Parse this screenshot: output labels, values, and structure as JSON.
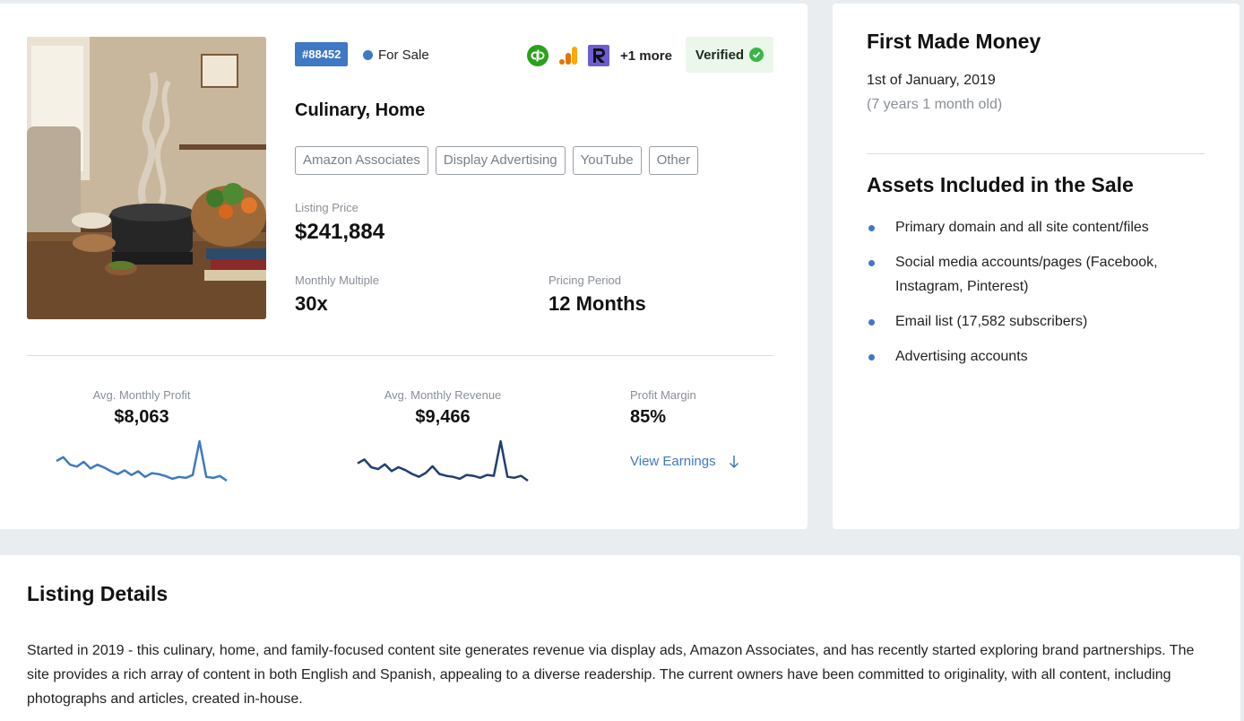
{
  "listing": {
    "id": "#88452",
    "status": "For Sale",
    "category": "Culinary, Home",
    "more_integrations": "+1 more",
    "verified": "Verified",
    "tags": [
      "Amazon Associates",
      "Display Advertising",
      "YouTube",
      "Other"
    ],
    "listing_price_label": "Listing Price",
    "listing_price": "$241,884",
    "monthly_multiple_label": "Monthly Multiple",
    "monthly_multiple": "30x",
    "pricing_period_label": "Pricing Period",
    "pricing_period": "12 Months"
  },
  "integrations": [
    {
      "icon": "quickbooks-icon",
      "color": "#2ca01c"
    },
    {
      "icon": "google-analytics-icon",
      "color": "#f9ab00"
    },
    {
      "icon": "r-brand-icon",
      "color": "#6c5dd3"
    }
  ],
  "metrics": {
    "profit_label": "Avg. Monthly Profit",
    "profit_value": "$8,063",
    "revenue_label": "Avg. Monthly Revenue",
    "revenue_value": "$9,466",
    "margin_label": "Profit Margin",
    "margin_value": "85%",
    "view_earnings": "View Earnings"
  },
  "sparklines": {
    "profit": {
      "color": "#3f78c4",
      "values": [
        62,
        66,
        58,
        56,
        61,
        54,
        58,
        55,
        51,
        48,
        52,
        47,
        51,
        45,
        49,
        48,
        46,
        43,
        45,
        44,
        47,
        83,
        45,
        44,
        46,
        41
      ]
    },
    "revenue": {
      "color": "#1f3f73",
      "values": [
        62,
        66,
        58,
        56,
        61,
        54,
        58,
        55,
        51,
        48,
        52,
        59,
        51,
        49,
        48,
        46,
        50,
        49,
        47,
        50,
        49,
        85,
        48,
        47,
        49,
        44
      ]
    }
  },
  "side": {
    "first_money_title": "First Made Money",
    "first_money_date": "1st of January, 2019",
    "first_money_age": "(7 years 1 month old)",
    "assets_title": "Assets Included in the Sale",
    "assets": [
      "Primary domain and all site content/files",
      "Social media accounts/pages (Facebook, Instagram, Pinterest)",
      "Email list (17,582 subscribers)",
      "Advertising accounts"
    ]
  },
  "details": {
    "title": "Listing Details",
    "body": "Started in 2019 - this culinary, home, and family-focused content site generates revenue via display ads, Amazon Associates, and has recently started exploring brand partnerships. The site provides a rich array of content in both English and Spanish, appealing to a diverse readership. The current owners have been committed to originality, with all content, including photographs and articles, created in-house."
  },
  "colors": {
    "accent": "#3f78c4",
    "verified_bg": "#eaf7ea",
    "check": "#3bb54a"
  }
}
